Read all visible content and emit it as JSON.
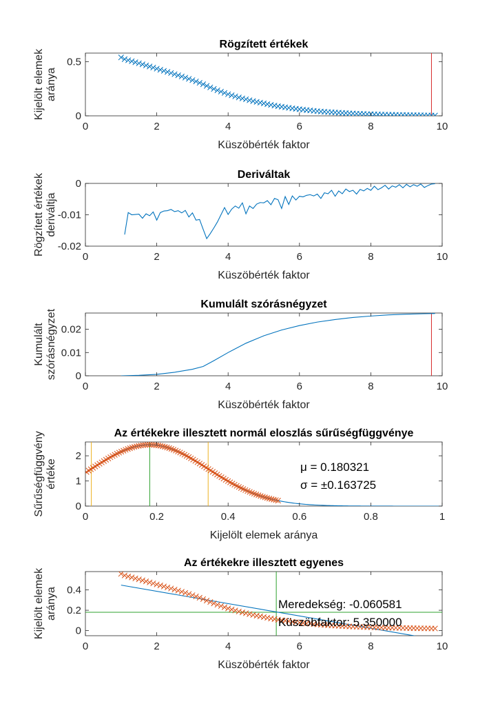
{
  "chart_data": [
    {
      "type": "scatter",
      "title": "Rögzített értékek",
      "xlabel": "Küszöbérték faktor",
      "ylabel": [
        "Kijelölt elemek",
        "aránya"
      ],
      "xlim": [
        0,
        10
      ],
      "ylim": [
        0,
        0.58
      ],
      "xticks": [
        "0",
        "2",
        "4",
        "6",
        "8",
        "10"
      ],
      "yticks": [
        "0",
        "0.5"
      ],
      "series": [
        {
          "marker": "x",
          "color": "#0072BD",
          "x": [
            1.0,
            1.1,
            1.2,
            1.3,
            1.4,
            1.5,
            1.6,
            1.7,
            1.8,
            1.9,
            2.0,
            2.1,
            2.2,
            2.3,
            2.4,
            2.5,
            2.6,
            2.7,
            2.8,
            2.9,
            3.0,
            3.1,
            3.2,
            3.3,
            3.4,
            3.5,
            3.6,
            3.7,
            3.8,
            3.9,
            4.0,
            4.1,
            4.2,
            4.3,
            4.4,
            4.5,
            4.6,
            4.7,
            4.8,
            4.9,
            5.0,
            5.1,
            5.2,
            5.3,
            5.4,
            5.5,
            5.6,
            5.7,
            5.8,
            5.9,
            6.0,
            6.1,
            6.2,
            6.3,
            6.4,
            6.5,
            6.6,
            6.7,
            6.8,
            6.9,
            7.0,
            7.1,
            7.2,
            7.3,
            7.4,
            7.5,
            7.6,
            7.7,
            7.8,
            7.9,
            8.0,
            8.1,
            8.2,
            8.3,
            8.4,
            8.5,
            8.6,
            8.7,
            8.8,
            8.9,
            9.0,
            9.1,
            9.2,
            9.3,
            9.4,
            9.5,
            9.6,
            9.7,
            9.8
          ],
          "y": [
            0.54,
            0.524,
            0.514,
            0.505,
            0.495,
            0.486,
            0.476,
            0.466,
            0.456,
            0.446,
            0.436,
            0.426,
            0.416,
            0.406,
            0.396,
            0.385,
            0.375,
            0.364,
            0.353,
            0.342,
            0.33,
            0.318,
            0.305,
            0.292,
            0.277,
            0.263,
            0.249,
            0.236,
            0.224,
            0.212,
            0.2,
            0.19,
            0.18,
            0.17,
            0.161,
            0.153,
            0.144,
            0.136,
            0.129,
            0.122,
            0.115,
            0.108,
            0.101,
            0.095,
            0.089,
            0.084,
            0.079,
            0.074,
            0.069,
            0.065,
            0.061,
            0.057,
            0.053,
            0.05,
            0.046,
            0.043,
            0.04,
            0.038,
            0.035,
            0.033,
            0.031,
            0.029,
            0.027,
            0.025,
            0.023,
            0.022,
            0.02,
            0.019,
            0.018,
            0.016,
            0.015,
            0.014,
            0.013,
            0.012,
            0.011,
            0.01,
            0.01,
            0.009,
            0.008,
            0.008,
            0.007,
            0.006,
            0.006,
            0.005,
            0.005,
            0.004,
            0.004,
            0.003,
            0.003
          ]
        }
      ],
      "vlines": [
        {
          "x": 9.7,
          "color": "#D62728"
        }
      ]
    },
    {
      "type": "line",
      "title": "Deriváltak",
      "xlabel": "Küszöbérték faktor",
      "ylabel": [
        "Rögzített értékek",
        "deriváltja"
      ],
      "xlim": [
        0,
        10
      ],
      "ylim": [
        -0.02,
        0
      ],
      "xticks": [
        "0",
        "2",
        "4",
        "6",
        "8",
        "10"
      ],
      "yticks": [
        "-0.02",
        "-0.01",
        "0"
      ],
      "series": [
        {
          "color": "#0072BD",
          "x": [
            1.1,
            1.2,
            1.3,
            1.4,
            1.5,
            1.6,
            1.7,
            1.8,
            1.9,
            2.0,
            2.1,
            2.2,
            2.3,
            2.4,
            2.5,
            2.6,
            2.7,
            2.8,
            2.9,
            3.0,
            3.1,
            3.2,
            3.3,
            3.4,
            3.5,
            3.6,
            3.7,
            3.8,
            3.9,
            4.0,
            4.1,
            4.2,
            4.3,
            4.4,
            4.5,
            4.6,
            4.7,
            4.8,
            4.9,
            5.0,
            5.1,
            5.2,
            5.3,
            5.4,
            5.5,
            5.6,
            5.7,
            5.8,
            5.9,
            6.0,
            6.1,
            6.2,
            6.3,
            6.4,
            6.5,
            6.6,
            6.7,
            6.8,
            6.9,
            7.0,
            7.1,
            7.2,
            7.3,
            7.4,
            7.5,
            7.6,
            7.7,
            7.8,
            7.9,
            8.0,
            8.1,
            8.2,
            8.3,
            8.4,
            8.5,
            8.6,
            8.7,
            8.8,
            8.9,
            9.0,
            9.1,
            9.2,
            9.3,
            9.4,
            9.5,
            9.6,
            9.7,
            9.8
          ],
          "y": [
            -0.0163,
            -0.0093,
            -0.01,
            -0.0099,
            -0.0098,
            -0.0111,
            -0.0097,
            -0.0103,
            -0.0091,
            -0.0117,
            -0.0093,
            -0.0088,
            -0.0087,
            -0.0083,
            -0.009,
            -0.0087,
            -0.0094,
            -0.0086,
            -0.0107,
            -0.0094,
            -0.0117,
            -0.0115,
            -0.0146,
            -0.0176,
            -0.016,
            -0.0142,
            -0.0123,
            -0.01,
            -0.0077,
            -0.0099,
            -0.0082,
            -0.0072,
            -0.0079,
            -0.0062,
            -0.0097,
            -0.0072,
            -0.008,
            -0.0066,
            -0.0061,
            -0.0062,
            -0.0055,
            -0.0068,
            -0.0048,
            -0.0052,
            -0.008,
            -0.0042,
            -0.0067,
            -0.004,
            -0.0053,
            -0.0041,
            -0.0043,
            -0.0038,
            -0.0036,
            -0.004,
            -0.0034,
            -0.0048,
            -0.003,
            -0.0033,
            -0.0022,
            -0.0041,
            -0.0024,
            -0.0033,
            -0.0018,
            -0.0026,
            -0.0022,
            -0.0034,
            -0.0019,
            -0.0024,
            -0.0016,
            -0.0022,
            -0.0009,
            -0.002,
            -0.0014,
            -0.0006,
            -0.0018,
            -0.0008,
            -0.0012,
            -0.0004,
            -0.0014,
            -0.0003,
            -0.0011,
            -0.0004,
            -0.0009,
            -0.0002,
            -0.0013,
            -0.0007,
            -0.0002,
            -0.0001
          ]
        }
      ]
    },
    {
      "type": "line",
      "title": "Kumulált szórásnégyzet",
      "xlabel": "Küszöbérték faktor",
      "ylabel": [
        "Kumulált",
        "szórásnégyzet"
      ],
      "xlim": [
        0,
        10
      ],
      "ylim": [
        0,
        0.027
      ],
      "xticks": [
        "0",
        "2",
        "4",
        "6",
        "8",
        "10"
      ],
      "yticks": [
        "0",
        "0.01",
        "0.02"
      ],
      "series": [
        {
          "color": "#0072BD",
          "x": [
            1.0,
            1.5,
            2.0,
            2.5,
            3.0,
            3.3,
            3.6,
            4.0,
            4.5,
            5.0,
            5.5,
            6.0,
            6.5,
            7.0,
            7.5,
            8.0,
            8.5,
            9.0,
            9.5,
            9.8
          ],
          "y": [
            0.0,
            0.0002,
            0.0006,
            0.0015,
            0.0028,
            0.004,
            0.0065,
            0.01,
            0.014,
            0.0172,
            0.0197,
            0.0216,
            0.0231,
            0.0242,
            0.0251,
            0.0257,
            0.0262,
            0.0265,
            0.0267,
            0.0268
          ]
        }
      ],
      "vlines": [
        {
          "x": 9.7,
          "color": "#D62728"
        }
      ]
    },
    {
      "type": "scatter",
      "title": "Az értékekre illesztett normál eloszlás sűrűségfüggvénye",
      "xlabel": "Kijelölt elemek aránya",
      "ylabel": [
        "Sűrűségfüggvény",
        "értéke"
      ],
      "xlim": [
        0,
        1
      ],
      "ylim": [
        0,
        2.55
      ],
      "xticks": [
        "0",
        "0.2",
        "0.4",
        "0.6",
        "0.8",
        "1"
      ],
      "yticks": [
        "0",
        "1",
        "2"
      ],
      "series": [
        {
          "name": "pdf",
          "kind": "line",
          "color": "#0072BD",
          "mu": 0.180321,
          "sigma": 0.163725,
          "x_from": 0.0,
          "x_to": 1.0
        },
        {
          "name": "samples",
          "kind": "marker",
          "marker": "x",
          "color": "#D95319",
          "mu": 0.180321,
          "sigma": 0.163725,
          "x_from": 0.003,
          "x_to": 0.54,
          "count": 89
        }
      ],
      "vlines": [
        {
          "x": 0.016596,
          "color": "#EDB120"
        },
        {
          "x": 0.180321,
          "color": "#2CA02C"
        },
        {
          "x": 0.344046,
          "color": "#EDB120"
        }
      ],
      "annotations": [
        "μ = 0.180321",
        "σ = ±0.163725"
      ]
    },
    {
      "type": "scatter",
      "title": "Az értékekre illesztett egyenes",
      "xlabel": "Küszöbérték faktor",
      "ylabel": [
        "Kijelölt elemek",
        "aránya"
      ],
      "xlim": [
        0,
        10
      ],
      "ylim": [
        -0.05,
        0.58
      ],
      "xticks": [
        "0",
        "2",
        "4",
        "6",
        "8",
        "10"
      ],
      "yticks": [
        "0",
        "0.2",
        "0.4"
      ],
      "series": [
        {
          "name": "fit",
          "kind": "line",
          "color": "#0072BD",
          "x": [
            1.0,
            9.8
          ],
          "y": [
            0.447,
            -0.086
          ]
        },
        {
          "name": "samples",
          "kind": "marker",
          "marker": "x",
          "color": "#D95319",
          "same_as_panel": 0,
          "y_offset": 0.018
        }
      ],
      "vlines": [
        {
          "x": 5.35,
          "color": "#2CA02C"
        }
      ],
      "hlines": [
        {
          "y": 0.180321,
          "color": "#2CA02C"
        }
      ],
      "annotations": [
        "Meredekség: -0.060581",
        "Küszöbfaktor: 5.350000"
      ]
    }
  ]
}
